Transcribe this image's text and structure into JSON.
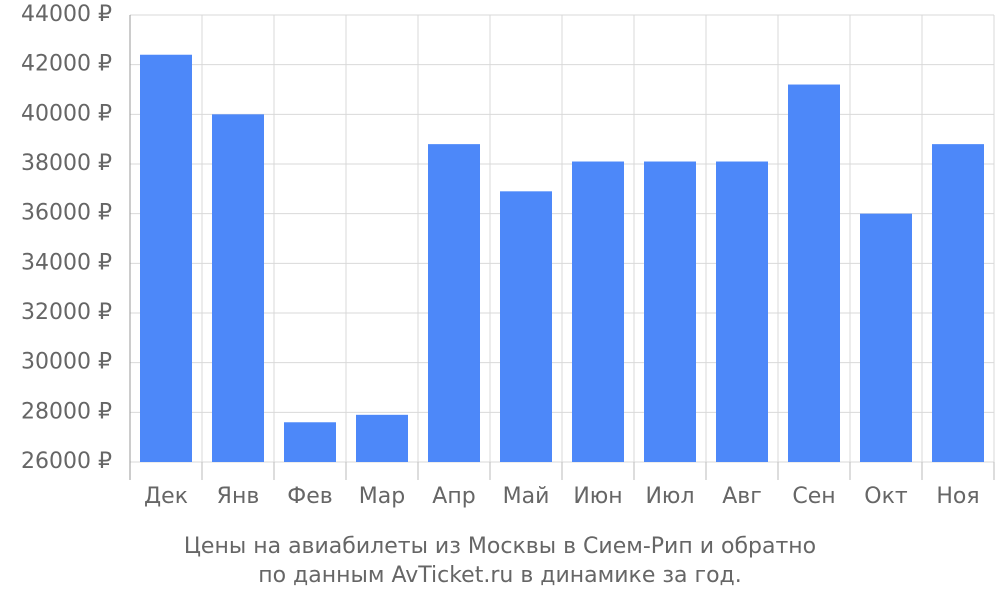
{
  "chart_data": {
    "type": "bar",
    "title": "Цены на авиабилеты из Москвы в Сием-Рип и обратно",
    "subtitle": "по данным AvTicket.ru в динамике за год.",
    "categories": [
      "Дек",
      "Янв",
      "Фев",
      "Мар",
      "Апр",
      "Май",
      "Июн",
      "Июл",
      "Авг",
      "Сен",
      "Окт",
      "Ноя"
    ],
    "values": [
      42400,
      40000,
      27600,
      27900,
      38800,
      36900,
      38100,
      38100,
      38100,
      41200,
      36000,
      38800
    ],
    "color": "#4d88f9",
    "ylim": [
      26000,
      44000
    ],
    "yticks": [
      {
        "value": 26000,
        "label": "26000 ₽"
      },
      {
        "value": 28000,
        "label": "28000 ₽"
      },
      {
        "value": 30000,
        "label": "30000 ₽"
      },
      {
        "value": 32000,
        "label": "32000 ₽"
      },
      {
        "value": 34000,
        "label": "34000 ₽"
      },
      {
        "value": 36000,
        "label": "36000 ₽"
      },
      {
        "value": 38000,
        "label": "38000 ₽"
      },
      {
        "value": 40000,
        "label": "40000 ₽"
      },
      {
        "value": 42000,
        "label": "42000 ₽"
      },
      {
        "value": 44000,
        "label": "44000 ₽"
      }
    ],
    "grid": true
  }
}
